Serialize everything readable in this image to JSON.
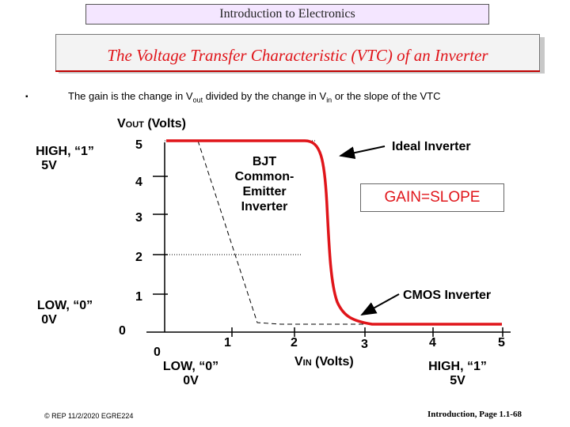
{
  "header": {
    "course": "Introduction to Electronics"
  },
  "slide": {
    "title": "The Voltage Transfer Characteristic (VTC) of an Inverter"
  },
  "bullet": {
    "pre": "The gain is the change in V",
    "out_sub": "out",
    "mid": " divided by the change in V",
    "in_sub": "in",
    "post": " or the slope of the VTC"
  },
  "axes": {
    "y_title_main": "V",
    "y_title_sub": "OUT",
    "y_title_rest": " (Volts)",
    "x_title_main": "V",
    "x_title_sub": "IN",
    "x_title_rest": " (Volts)",
    "y_ticks": [
      "5",
      "4",
      "3",
      "2",
      "1",
      "0"
    ],
    "x_ticks": [
      "0",
      "1",
      "2",
      "3",
      "4",
      "5"
    ]
  },
  "levels": {
    "high_line1": "HIGH, “1”",
    "high_line2": "5V",
    "low_line1": "LOW, “0”",
    "low_line2": "0V",
    "x_low_line1": "LOW, “0”",
    "x_low_line2": "0V",
    "x_high_line1": "HIGH, “1”",
    "x_high_line2": "5V"
  },
  "curves": {
    "ideal_label": "Ideal Inverter",
    "bjt_label": [
      "BJT",
      "Common-",
      "Emitter",
      "Inverter"
    ],
    "cmos_label": "CMOS Inverter",
    "gain_box": "GAIN=SLOPE",
    "cmos_color": "#e0151a"
  },
  "footer": {
    "left": "© REP 11/2/2020 EGRE224",
    "right": "Introduction, Page 1.1-68"
  }
}
